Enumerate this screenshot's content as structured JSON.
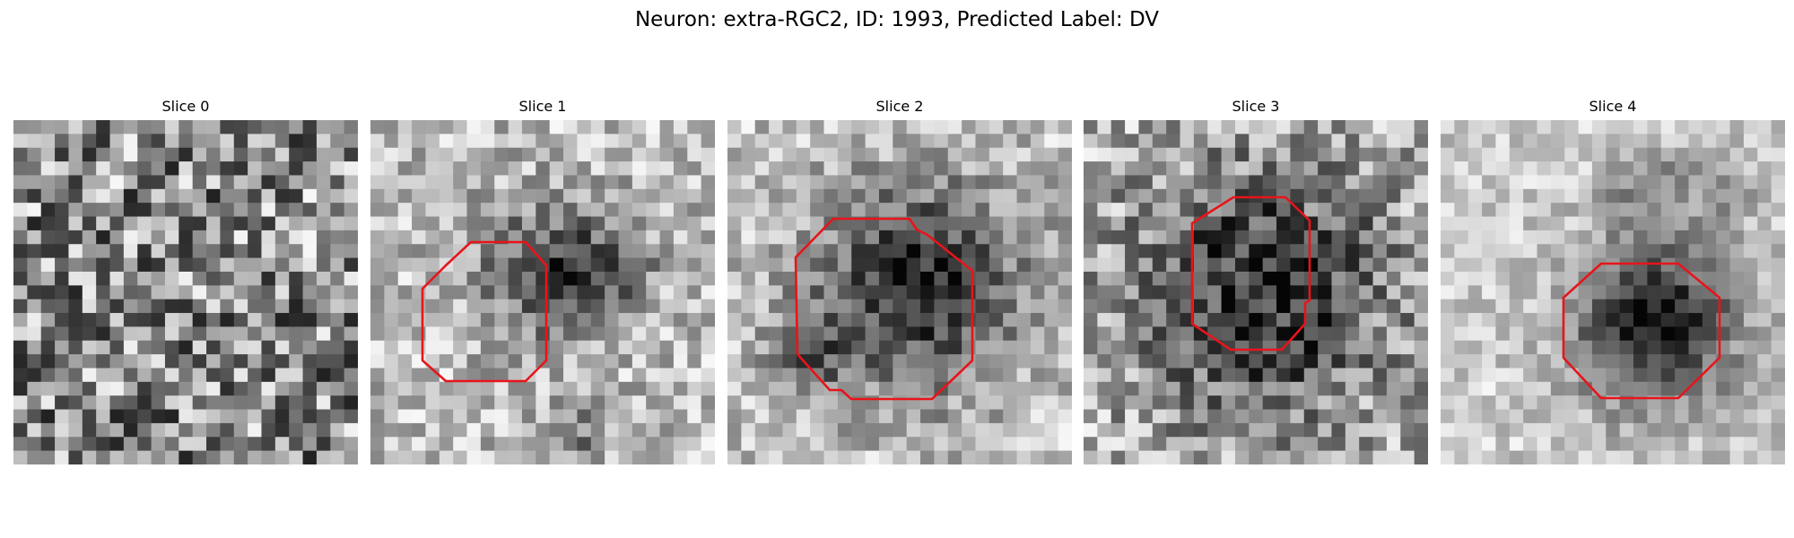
{
  "figure": {
    "title": "Neuron: extra-RGC2, ID: 1993, Predicted Label: DV",
    "roi_color": "#e8141a",
    "panels": [
      {
        "label": "Slice 0",
        "has_roi": false
      },
      {
        "label": "Slice 1",
        "has_roi": true
      },
      {
        "label": "Slice 2",
        "has_roi": true
      },
      {
        "label": "Slice 3",
        "has_roi": true
      },
      {
        "label": "Slice 4",
        "has_roi": true
      }
    ]
  }
}
